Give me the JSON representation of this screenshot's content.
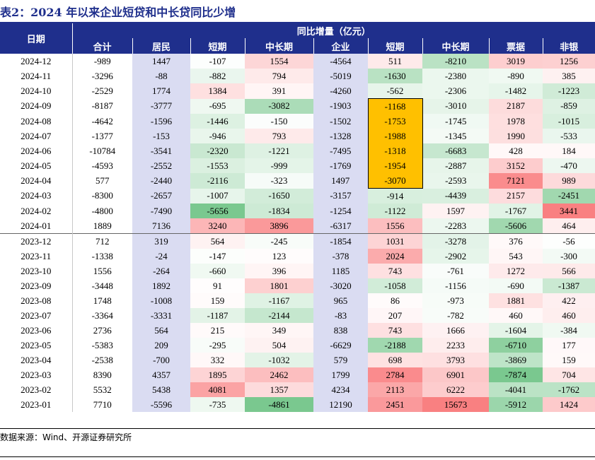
{
  "title": "表2：2024 年以来企业短贷和中长贷同比少增",
  "header": {
    "date_label": "日期",
    "group_label": "同比增量（亿元）",
    "columns": [
      "合计",
      "居民",
      "短期",
      "中长期",
      "企业",
      "短期",
      "中长期",
      "票据",
      "非银"
    ]
  },
  "rows": [
    {
      "date": "2024-12",
      "values": [
        "-989",
        "1447",
        "-107",
        "1554",
        "-4564",
        "511",
        "-8210",
        "3019",
        "1256"
      ]
    },
    {
      "date": "2024-11",
      "values": [
        "-3296",
        "-88",
        "-882",
        "794",
        "-5019",
        "-1630",
        "-2380",
        "-890",
        "385"
      ]
    },
    {
      "date": "2024-10",
      "values": [
        "-2529",
        "1774",
        "1384",
        "391",
        "-4260",
        "-562",
        "-2306",
        "-1482",
        "-1223"
      ]
    },
    {
      "date": "2024-09",
      "values": [
        "-8187",
        "-3777",
        "-695",
        "-3082",
        "-1903",
        "-1168",
        "-3010",
        "2187",
        "-859"
      ]
    },
    {
      "date": "2024-08",
      "values": [
        "-4642",
        "-1596",
        "-1446",
        "-150",
        "-1502",
        "-1753",
        "-1745",
        "1978",
        "-1015"
      ]
    },
    {
      "date": "2024-07",
      "values": [
        "-1377",
        "-153",
        "-946",
        "793",
        "-1328",
        "-1988",
        "-1345",
        "1990",
        "-533"
      ]
    },
    {
      "date": "2024-06",
      "values": [
        "-10784",
        "-3541",
        "-2320",
        "-1221",
        "-7495",
        "-1318",
        "-6683",
        "428",
        "184"
      ]
    },
    {
      "date": "2024-05",
      "values": [
        "-4593",
        "-2552",
        "-1553",
        "-999",
        "-1769",
        "-1954",
        "-2887",
        "3152",
        "-470"
      ]
    },
    {
      "date": "2024-04",
      "values": [
        "577",
        "-2440",
        "-2116",
        "-323",
        "1497",
        "-3070",
        "-2593",
        "7121",
        "989"
      ]
    },
    {
      "date": "2024-03",
      "values": [
        "-8300",
        "-2657",
        "-1007",
        "-1650",
        "-3157",
        "-914",
        "-4439",
        "2157",
        "-2451"
      ]
    },
    {
      "date": "2024-02",
      "values": [
        "-4800",
        "-7490",
        "-5656",
        "-1834",
        "-1254",
        "-1122",
        "1597",
        "-1767",
        "3441"
      ]
    },
    {
      "date": "2024-01",
      "values": [
        "1889",
        "7136",
        "3240",
        "3896",
        "-6317",
        "1556",
        "-2283",
        "-5606",
        "464"
      ]
    },
    {
      "date": "2023-12",
      "values": [
        "712",
        "319",
        "564",
        "-245",
        "-1854",
        "1031",
        "-3278",
        "376",
        "-56"
      ]
    },
    {
      "date": "2023-11",
      "values": [
        "-1338",
        "-24",
        "-147",
        "123",
        "-378",
        "2024",
        "-2902",
        "543",
        "-300"
      ]
    },
    {
      "date": "2023-10",
      "values": [
        "1556",
        "-264",
        "-660",
        "396",
        "1185",
        "743",
        "-761",
        "1272",
        "566"
      ]
    },
    {
      "date": "2023-09",
      "values": [
        "-3448",
        "1892",
        "91",
        "1801",
        "-3020",
        "-1058",
        "-1156",
        "-690",
        "-1387"
      ]
    },
    {
      "date": "2023-08",
      "values": [
        "1748",
        "-1008",
        "159",
        "-1167",
        "965",
        "86",
        "-973",
        "1881",
        "422"
      ]
    },
    {
      "date": "2023-07",
      "values": [
        "-3364",
        "-3331",
        "-1187",
        "-2144",
        "-83",
        "207",
        "-782",
        "460",
        "460"
      ]
    },
    {
      "date": "2023-06",
      "values": [
        "2736",
        "564",
        "215",
        "349",
        "838",
        "743",
        "1666",
        "-1604",
        "-384"
      ]
    },
    {
      "date": "2023-05",
      "values": [
        "-5383",
        "209",
        "-295",
        "504",
        "-6629",
        "-2188",
        "2233",
        "-6710",
        "177"
      ]
    },
    {
      "date": "2023-04",
      "values": [
        "-2538",
        "-700",
        "332",
        "-1032",
        "579",
        "698",
        "3793",
        "-3869",
        "159"
      ]
    },
    {
      "date": "2023-03",
      "values": [
        "8390",
        "4357",
        "1895",
        "2462",
        "1799",
        "2784",
        "6901",
        "-7874",
        "704"
      ]
    },
    {
      "date": "2023-02",
      "values": [
        "5532",
        "5438",
        "4081",
        "1357",
        "4234",
        "2113",
        "6222",
        "-4041",
        "-1762"
      ]
    },
    {
      "date": "2023-01",
      "values": [
        "7710",
        "-5596",
        "-735",
        "-4861",
        "12190",
        "2451",
        "15673",
        "-5912",
        "1424"
      ]
    }
  ],
  "highlight": {
    "column_index": 5,
    "first_row": 3,
    "last_row": 8,
    "color": "#ffc000"
  },
  "colors": {
    "header_bg": "#1f2f8c",
    "lavender": "#dadcf2",
    "positive": "#f8696b",
    "negative": "#63be7b"
  },
  "source": "数据来源：Wind、开源证券研究所"
}
